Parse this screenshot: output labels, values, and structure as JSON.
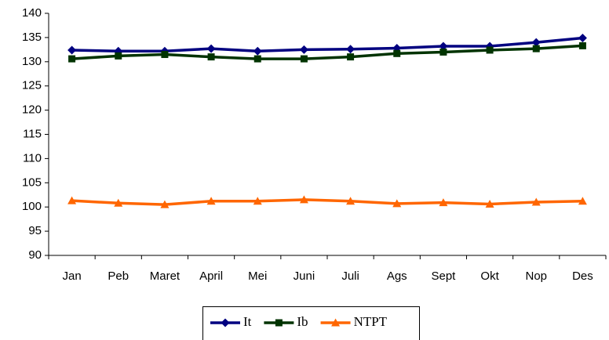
{
  "chart_data": {
    "type": "line",
    "categories": [
      "Jan",
      "Peb",
      "Maret",
      "April",
      "Mei",
      "Juni",
      "Juli",
      "Ags",
      "Sept",
      "Okt",
      "Nop",
      "Des"
    ],
    "series": [
      {
        "name": "It",
        "color": "#000080",
        "marker": "diamond",
        "values": [
          132.4,
          132.2,
          132.2,
          132.7,
          132.2,
          132.5,
          132.6,
          132.8,
          133.2,
          133.2,
          134.0,
          134.9
        ]
      },
      {
        "name": "Ib",
        "color": "#003300",
        "marker": "square",
        "values": [
          130.6,
          131.2,
          131.5,
          131.0,
          130.6,
          130.6,
          131.0,
          131.7,
          132.0,
          132.4,
          132.7,
          133.3
        ]
      },
      {
        "name": "NTPT",
        "color": "#ff6600",
        "marker": "triangle",
        "values": [
          101.3,
          100.8,
          100.5,
          101.2,
          101.2,
          101.5,
          101.2,
          100.7,
          100.9,
          100.6,
          101.0,
          101.2
        ]
      }
    ],
    "ylim": [
      90,
      140
    ],
    "yticks": [
      90,
      95,
      100,
      105,
      110,
      115,
      120,
      125,
      130,
      135,
      140
    ],
    "grid": false,
    "legend": "bottom"
  }
}
